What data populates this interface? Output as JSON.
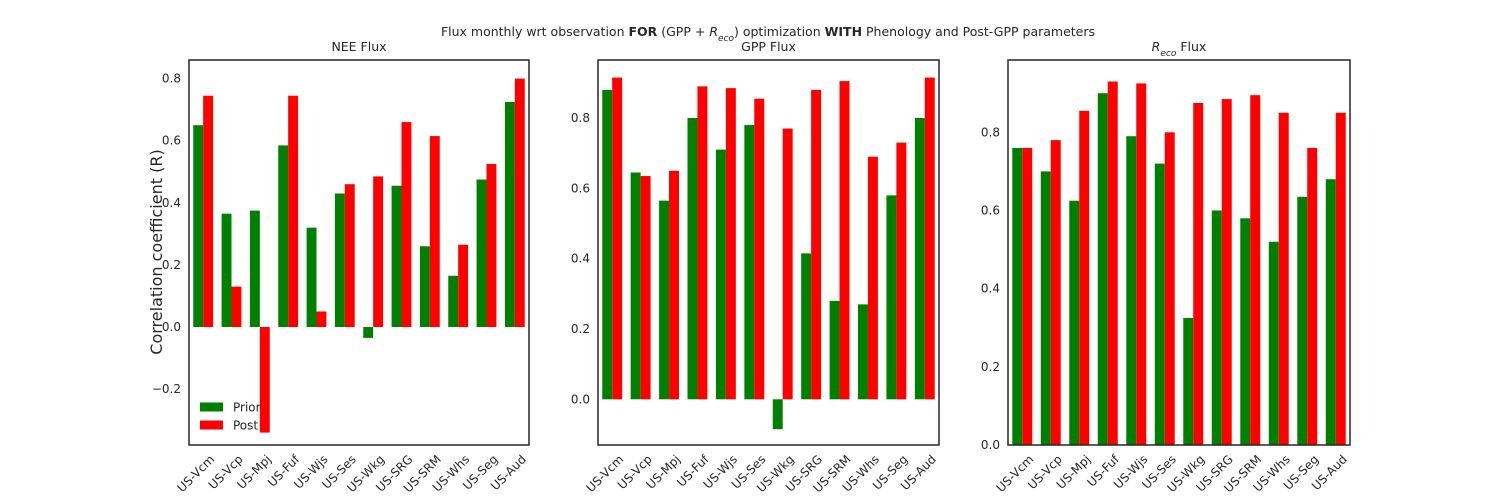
{
  "figure": {
    "suptitle_parts": [
      {
        "text": "Flux monthly wrt observation ",
        "weight": "normal"
      },
      {
        "text": "FOR",
        "weight": "bold"
      },
      {
        "text": " (GPP + ",
        "weight": "normal"
      },
      {
        "text": "R",
        "weight": "normal",
        "style": "italic"
      },
      {
        "text": "eco",
        "weight": "normal",
        "style": "italic",
        "sub": true
      },
      {
        "text": ") optimization ",
        "weight": "normal"
      },
      {
        "text": "WITH",
        "weight": "bold"
      },
      {
        "text": " Phenology and Post-GPP parameters",
        "weight": "normal"
      }
    ],
    "ylabel": "Correlation coefficient (R)"
  },
  "colors": {
    "prior": "#008000",
    "post": "#ff0000",
    "axes": "#262626"
  },
  "chart_data": [
    {
      "type": "bar",
      "title_parts": [
        {
          "text": "NEE Flux"
        }
      ],
      "categories": [
        "US-Vcm",
        "US-Vcp",
        "US-Mpj",
        "US-Fuf",
        "US-Wjs",
        "US-Ses",
        "US-Wkg",
        "US-SRG",
        "US-SRM",
        "US-Whs",
        "US-Seg",
        "US-Aud"
      ],
      "series": [
        {
          "name": "Prior",
          "color": "#008000",
          "values": [
            0.65,
            0.365,
            0.375,
            0.585,
            0.32,
            0.43,
            -0.035,
            0.455,
            0.26,
            0.165,
            0.475,
            0.725
          ]
        },
        {
          "name": "Post",
          "color": "#ff0000",
          "values": [
            0.745,
            0.13,
            -0.34,
            0.745,
            0.05,
            0.46,
            0.485,
            0.66,
            0.615,
            0.265,
            0.525,
            0.8
          ]
        }
      ],
      "ylim": [
        -0.38,
        0.86
      ],
      "yticks": [
        -0.2,
        0.0,
        0.2,
        0.4,
        0.6,
        0.8
      ],
      "ytick_labels": [
        "−0.2",
        "0.0",
        "0.2",
        "0.4",
        "0.6",
        "0.8"
      ],
      "legend": {
        "position": "lower-left",
        "entries": [
          "Prior",
          "Post"
        ]
      },
      "grid": false
    },
    {
      "type": "bar",
      "title_parts": [
        {
          "text": "GPP Flux"
        }
      ],
      "categories": [
        "US-Vcm",
        "US-Vcp",
        "US-Mpj",
        "US-Fuf",
        "US-Wjs",
        "US-Ses",
        "US-Wkg",
        "US-SRG",
        "US-SRM",
        "US-Whs",
        "US-Seg",
        "US-Aud"
      ],
      "series": [
        {
          "name": "Prior",
          "color": "#008000",
          "values": [
            0.88,
            0.645,
            0.565,
            0.8,
            0.71,
            0.78,
            -0.085,
            0.415,
            0.28,
            0.27,
            0.58,
            0.8
          ]
        },
        {
          "name": "Post",
          "color": "#ff0000",
          "values": [
            0.915,
            0.635,
            0.65,
            0.89,
            0.885,
            0.855,
            0.77,
            0.88,
            0.905,
            0.69,
            0.73,
            0.915
          ]
        }
      ],
      "ylim": [
        -0.13,
        0.965
      ],
      "yticks": [
        0.0,
        0.2,
        0.4,
        0.6,
        0.8
      ],
      "ytick_labels": [
        "0.0",
        "0.2",
        "0.4",
        "0.6",
        "0.8"
      ],
      "grid": false
    },
    {
      "type": "bar",
      "title_parts": [
        {
          "text": "R",
          "style": "italic"
        },
        {
          "text": "eco",
          "style": "italic",
          "sub": true
        },
        {
          "text": " Flux"
        }
      ],
      "categories": [
        "US-Vcm",
        "US-Vcp",
        "US-Mpj",
        "US-Fuf",
        "US-Wjs",
        "US-Ses",
        "US-Wkg",
        "US-SRG",
        "US-SRM",
        "US-Whs",
        "US-Seg",
        "US-Aud"
      ],
      "series": [
        {
          "name": "Prior",
          "color": "#008000",
          "values": [
            0.76,
            0.7,
            0.625,
            0.9,
            0.79,
            0.72,
            0.325,
            0.6,
            0.58,
            0.52,
            0.635,
            0.68
          ]
        },
        {
          "name": "Post",
          "color": "#ff0000",
          "values": [
            0.76,
            0.78,
            0.855,
            0.93,
            0.925,
            0.8,
            0.875,
            0.885,
            0.895,
            0.85,
            0.76,
            0.85
          ]
        }
      ],
      "ylim": [
        0.0,
        0.985
      ],
      "yticks": [
        0.0,
        0.2,
        0.4,
        0.6,
        0.8
      ],
      "ytick_labels": [
        "0.0",
        "0.2",
        "0.4",
        "0.6",
        "0.8"
      ],
      "grid": false
    }
  ]
}
